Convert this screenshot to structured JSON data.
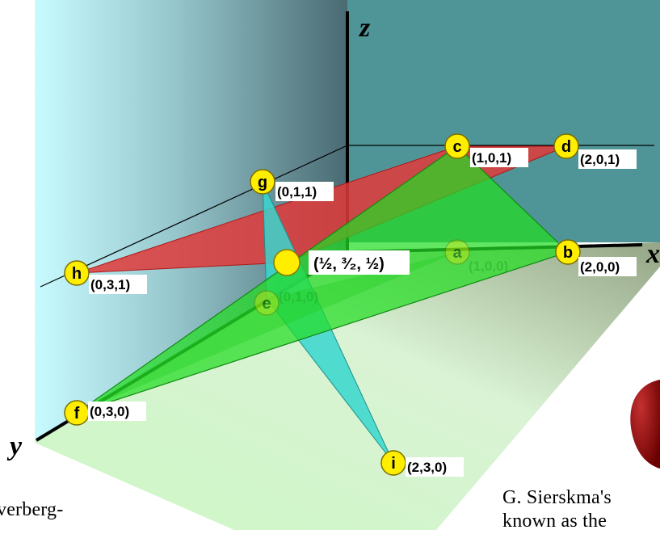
{
  "axes": {
    "x": "x",
    "y": "y",
    "z": "z"
  },
  "points": [
    {
      "id": "a",
      "letter": "a",
      "coord": "(1,0,0)",
      "faded": true
    },
    {
      "id": "b",
      "letter": "b",
      "coord": "(2,0,0)",
      "faded": false
    },
    {
      "id": "c",
      "letter": "c",
      "coord": "(1,0,1)",
      "faded": false
    },
    {
      "id": "d",
      "letter": "d",
      "coord": "(2,0,1)",
      "faded": false
    },
    {
      "id": "e",
      "letter": "e",
      "coord": "(0,1,0)",
      "faded": true
    },
    {
      "id": "f",
      "letter": "f",
      "coord": "(0,3,0)",
      "faded": false
    },
    {
      "id": "g",
      "letter": "g",
      "coord": "(0,1,1)",
      "faded": false
    },
    {
      "id": "h",
      "letter": "h",
      "coord": "(0,3,1)",
      "faded": false
    },
    {
      "id": "i",
      "letter": "i",
      "coord": "(2,3,0)",
      "faded": false
    }
  ],
  "center": {
    "coord": "(½, ³⁄₂, ½)"
  },
  "captions": {
    "left": "verberg-",
    "right_line1": "G. Sierskma's",
    "right_line2": "known as the"
  },
  "colors": {
    "left_wall_light": "#c8fbff",
    "left_wall_dark": "#4d6e75",
    "back_wall": "#4f9598",
    "floor": "#bff2b8",
    "red_triangle": "#e03a3a",
    "green_triangle": "#22dd22",
    "cyan_triangle": "#38d6cf",
    "vertex_fill": "#ffee00",
    "sphere": "#8a0000"
  }
}
